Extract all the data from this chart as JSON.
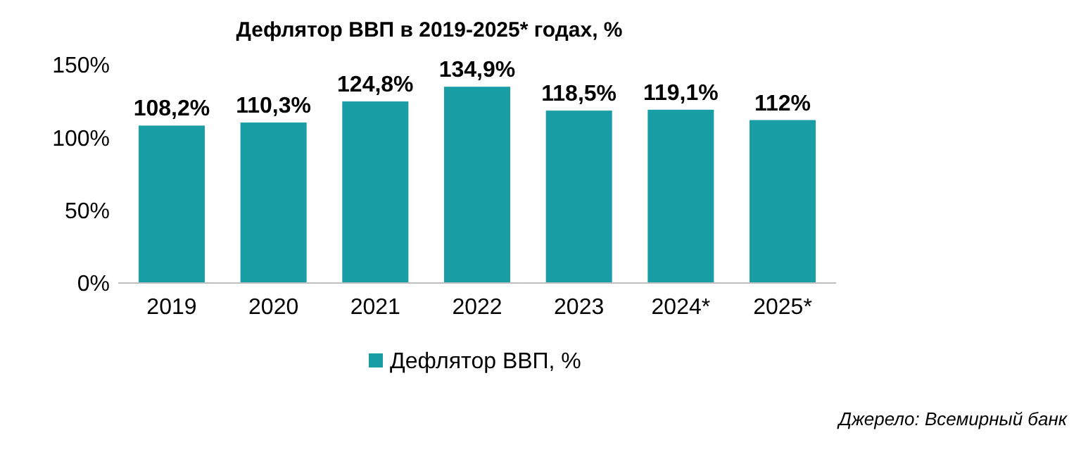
{
  "chart_data": {
    "type": "bar",
    "title": "Дефлятор ВВП в 2019-2025* годах, %",
    "categories": [
      "2019",
      "2020",
      "2021",
      "2022",
      "2023",
      "2024*",
      "2025*"
    ],
    "series": [
      {
        "name": "Дефлятор ВВП, %",
        "color": "#1a9ea6",
        "values": [
          108.2,
          110.3,
          124.8,
          134.9,
          118.5,
          119.1,
          112
        ],
        "value_labels": [
          "108,2%",
          "110,3%",
          "124,8%",
          "134,9%",
          "118,5%",
          "119,1%",
          "112%"
        ]
      }
    ],
    "ylim": [
      0,
      150
    ],
    "yticks": [
      {
        "value": 0,
        "label": "0%"
      },
      {
        "value": 50,
        "label": "50%"
      },
      {
        "value": 100,
        "label": "100%"
      },
      {
        "value": 150,
        "label": "150%"
      }
    ],
    "legend": "bottom",
    "grid": false,
    "annotations": [
      "Джерело: Всемирный банк"
    ]
  }
}
